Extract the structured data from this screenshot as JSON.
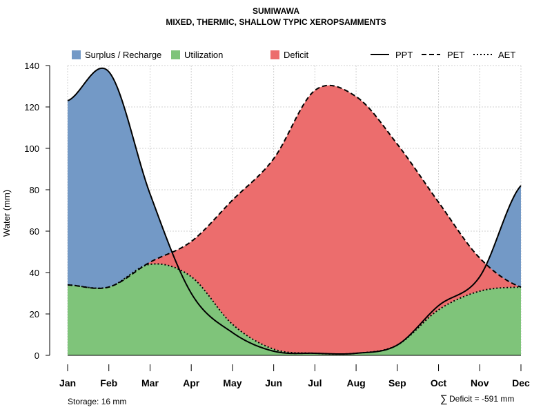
{
  "chart_data": {
    "type": "area",
    "title": "SUMIWAWA",
    "subtitle": "MIXED, THERMIC, SHALLOW TYPIC XEROPSAMMENTS",
    "xlabel": "",
    "ylabel": "Water (mm)",
    "ylim": [
      0,
      140
    ],
    "yticks": [
      0,
      20,
      40,
      60,
      80,
      100,
      120,
      140
    ],
    "categories": [
      "Jan",
      "Feb",
      "Mar",
      "Apr",
      "May",
      "Jun",
      "Jul",
      "Aug",
      "Sep",
      "Oct",
      "Nov",
      "Dec"
    ],
    "grid": true,
    "legend_position": "top",
    "series": [
      {
        "name": "PPT",
        "style": "solid",
        "values": [
          123,
          137,
          78,
          30,
          11,
          2,
          1,
          1,
          5,
          24,
          38,
          82
        ]
      },
      {
        "name": "PET",
        "style": "dashed",
        "values": [
          34,
          33,
          45,
          55,
          75,
          95,
          128,
          125,
          102,
          74,
          47,
          33
        ]
      },
      {
        "name": "AET",
        "style": "dotted",
        "values": [
          34,
          33,
          44,
          38,
          15,
          3,
          1,
          1,
          5,
          22,
          31,
          33
        ]
      }
    ],
    "areas": [
      {
        "name": "Surplus / Recharge",
        "color": "#7399c6"
      },
      {
        "name": "Utilization",
        "color": "#7fc47a"
      },
      {
        "name": "Deficit",
        "color": "#ec6d6d"
      }
    ],
    "annotations": {
      "storage": "Storage: 16 mm",
      "deficit_symbol": "∑",
      "deficit": "Deficit = -591 mm"
    }
  }
}
